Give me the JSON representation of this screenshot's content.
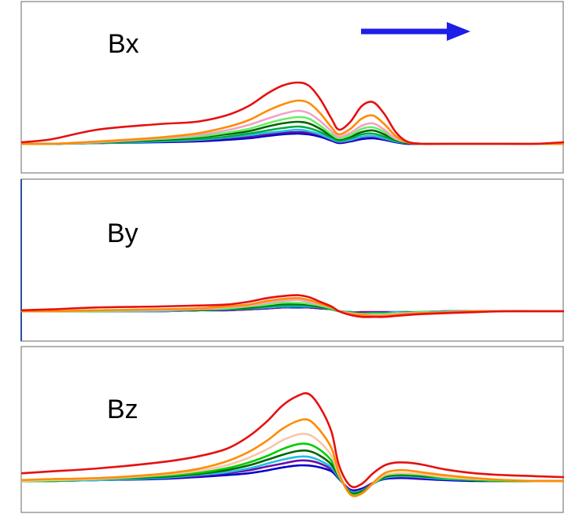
{
  "chart_data": [
    {
      "type": "line",
      "title": "Bx",
      "x": [
        0,
        40,
        100,
        180,
        230,
        270,
        300,
        325,
        345,
        365,
        380,
        395,
        410,
        420,
        435,
        450,
        465,
        480,
        495,
        510,
        530,
        560,
        600,
        640,
        680,
        717
      ],
      "ylim": [
        0,
        90
      ],
      "series": [
        {
          "color": "#0000cc",
          "values": [
            0,
            0,
            1,
            2,
            3,
            5,
            7,
            10,
            12,
            13,
            12,
            9,
            4,
            1,
            3,
            6,
            7,
            5,
            2,
            0,
            0,
            0,
            0,
            0,
            0,
            0
          ]
        },
        {
          "color": "#6a0dad",
          "values": [
            0,
            0,
            1,
            3,
            4,
            7,
            9,
            12,
            14,
            15,
            14,
            11,
            5,
            2,
            4,
            8,
            9,
            6,
            3,
            1,
            0,
            0,
            0,
            0,
            0,
            0
          ]
        },
        {
          "color": "#20c0e0",
          "values": [
            0,
            0,
            1,
            3,
            5,
            8,
            11,
            14,
            16,
            18,
            16,
            12,
            6,
            3,
            5,
            9,
            10,
            7,
            3,
            1,
            0,
            0,
            0,
            0,
            0,
            0
          ]
        },
        {
          "color": "#00aa44",
          "values": [
            0,
            0,
            1,
            4,
            6,
            9,
            13,
            17,
            20,
            22,
            20,
            15,
            8,
            4,
            7,
            12,
            13,
            9,
            4,
            1,
            0,
            0,
            0,
            0,
            0,
            0
          ]
        },
        {
          "color": "#006600",
          "values": [
            0,
            0,
            2,
            5,
            8,
            12,
            16,
            22,
            26,
            28,
            26,
            19,
            10,
            6,
            9,
            15,
            17,
            12,
            5,
            1,
            0,
            0,
            0,
            0,
            0,
            0
          ]
        },
        {
          "color": "#66ee66",
          "values": [
            0,
            0,
            2,
            6,
            9,
            14,
            19,
            26,
            31,
            34,
            32,
            23,
            12,
            7,
            11,
            19,
            21,
            15,
            6,
            2,
            0,
            0,
            0,
            0,
            0,
            0
          ]
        },
        {
          "color": "#f4a0c8",
          "values": [
            0,
            0,
            2,
            7,
            11,
            17,
            24,
            32,
            38,
            42,
            39,
            29,
            16,
            9,
            14,
            23,
            26,
            18,
            7,
            2,
            0,
            0,
            0,
            0,
            0,
            0
          ]
        },
        {
          "color": "#ff8c00",
          "values": [
            0,
            0,
            3,
            8,
            13,
            21,
            30,
            42,
            50,
            55,
            52,
            39,
            21,
            12,
            19,
            32,
            36,
            25,
            10,
            2,
            0,
            0,
            0,
            0,
            0,
            0
          ]
        },
        {
          "color": "#e61010",
          "values": [
            2,
            6,
            18,
            25,
            28,
            36,
            48,
            64,
            74,
            78,
            74,
            57,
            32,
            18,
            28,
            48,
            53,
            38,
            15,
            3,
            0,
            0,
            0,
            0,
            0,
            2
          ]
        }
      ]
    },
    {
      "type": "line",
      "title": "By",
      "x": [
        0,
        40,
        100,
        180,
        230,
        270,
        300,
        325,
        345,
        365,
        380,
        395,
        410,
        420,
        435,
        450,
        465,
        480,
        495,
        510,
        530,
        560,
        600,
        640,
        680,
        717
      ],
      "ylim": [
        -30,
        60
      ],
      "series": [
        {
          "color": "#0000cc",
          "values": [
            0,
            0,
            0,
            0,
            1,
            1,
            2,
            3,
            4,
            4,
            4,
            3,
            2,
            0,
            -1,
            -1,
            -1,
            -1,
            -1,
            -1,
            -1,
            0,
            0,
            0,
            0,
            0
          ]
        },
        {
          "color": "#6a0dad",
          "values": [
            0,
            0,
            0,
            0,
            1,
            1,
            2,
            3,
            4,
            5,
            4,
            3,
            2,
            0,
            -1,
            -1,
            -1,
            -1,
            -1,
            -1,
            -1,
            0,
            0,
            0,
            0,
            0
          ]
        },
        {
          "color": "#20c0e0",
          "values": [
            0,
            0,
            0,
            0,
            1,
            2,
            3,
            4,
            5,
            5,
            5,
            4,
            2,
            0,
            -1,
            -2,
            -2,
            -2,
            -1,
            -1,
            -1,
            0,
            0,
            0,
            0,
            0
          ]
        },
        {
          "color": "#00aa44",
          "values": [
            0,
            0,
            0,
            1,
            1,
            2,
            3,
            5,
            6,
            6,
            6,
            4,
            2,
            0,
            -1,
            -2,
            -2,
            -2,
            -2,
            -1,
            -1,
            -1,
            0,
            0,
            0,
            0
          ]
        },
        {
          "color": "#006600",
          "values": [
            0,
            0,
            0,
            1,
            1,
            3,
            4,
            6,
            8,
            8,
            7,
            5,
            3,
            0,
            -2,
            -2,
            -3,
            -3,
            -2,
            -2,
            -1,
            -1,
            0,
            0,
            0,
            0
          ]
        },
        {
          "color": "#66ee66",
          "values": [
            0,
            0,
            0,
            1,
            2,
            3,
            5,
            7,
            9,
            9,
            8,
            6,
            3,
            0,
            -2,
            -3,
            -3,
            -3,
            -2,
            -2,
            -1,
            -1,
            0,
            0,
            0,
            0
          ]
        },
        {
          "color": "#f4a0c8",
          "values": [
            0,
            0,
            1,
            1,
            2,
            4,
            6,
            9,
            11,
            12,
            10,
            7,
            4,
            0,
            -2,
            -3,
            -4,
            -4,
            -3,
            -2,
            -2,
            -1,
            0,
            0,
            0,
            0
          ]
        },
        {
          "color": "#ff8c00",
          "values": [
            0,
            0,
            1,
            2,
            3,
            5,
            7,
            11,
            13,
            14,
            12,
            8,
            4,
            0,
            -3,
            -4,
            -5,
            -5,
            -4,
            -3,
            -2,
            -1,
            0,
            0,
            0,
            0
          ]
        },
        {
          "color": "#e61010",
          "values": [
            1,
            2,
            4,
            5,
            6,
            7,
            10,
            14,
            16,
            17,
            15,
            10,
            5,
            0,
            -4,
            -6,
            -6,
            -6,
            -5,
            -4,
            -3,
            -2,
            -1,
            0,
            0,
            0
          ]
        }
      ]
    },
    {
      "type": "line",
      "title": "Bz",
      "x": [
        0,
        40,
        100,
        180,
        230,
        270,
        300,
        325,
        345,
        365,
        380,
        395,
        410,
        420,
        435,
        450,
        465,
        480,
        495,
        510,
        530,
        560,
        600,
        640,
        680,
        717
      ],
      "ylim": [
        -20,
        100
      ],
      "series": [
        {
          "color": "#0000cc",
          "values": [
            0,
            0,
            1,
            2,
            4,
            6,
            8,
            11,
            14,
            16,
            16,
            14,
            10,
            2,
            -9,
            -8,
            -2,
            2,
            3,
            3,
            2,
            1,
            0,
            0,
            0,
            0
          ]
        },
        {
          "color": "#6a0dad",
          "values": [
            0,
            0,
            1,
            3,
            5,
            8,
            11,
            15,
            18,
            21,
            21,
            18,
            12,
            3,
            -10,
            -9,
            -2,
            3,
            4,
            4,
            3,
            2,
            1,
            0,
            0,
            0
          ]
        },
        {
          "color": "#20c0e0",
          "values": [
            0,
            0,
            1,
            3,
            6,
            9,
            13,
            18,
            22,
            25,
            25,
            21,
            14,
            3,
            -11,
            -10,
            -3,
            3,
            5,
            5,
            4,
            2,
            1,
            0,
            0,
            0
          ]
        },
        {
          "color": "#006600",
          "values": [
            0,
            0,
            2,
            4,
            7,
            11,
            16,
            22,
            27,
            31,
            31,
            26,
            17,
            4,
            -12,
            -11,
            -3,
            4,
            6,
            6,
            5,
            3,
            1,
            0,
            0,
            0
          ]
        },
        {
          "color": "#00cc00",
          "values": [
            0,
            0,
            2,
            5,
            8,
            13,
            19,
            26,
            33,
            38,
            38,
            32,
            21,
            5,
            -13,
            -12,
            -3,
            5,
            7,
            7,
            6,
            3,
            1,
            0,
            0,
            0
          ]
        },
        {
          "color": "#f7c6a8",
          "values": [
            0,
            1,
            2,
            6,
            10,
            16,
            24,
            33,
            42,
            48,
            48,
            40,
            26,
            6,
            -14,
            -13,
            -3,
            6,
            8,
            8,
            7,
            4,
            2,
            1,
            0,
            0
          ]
        },
        {
          "color": "#ff8c00",
          "values": [
            1,
            2,
            3,
            7,
            12,
            20,
            30,
            42,
            54,
            62,
            63,
            52,
            34,
            8,
            -14,
            -13,
            -2,
            8,
            11,
            11,
            9,
            6,
            3,
            1,
            0,
            0
          ]
        },
        {
          "color": "#e61010",
          "values": [
            8,
            10,
            13,
            19,
            25,
            33,
            46,
            62,
            78,
            88,
            90,
            76,
            51,
            16,
            -5,
            -3,
            8,
            16,
            19,
            19,
            17,
            12,
            8,
            6,
            5,
            4
          ]
        }
      ]
    }
  ],
  "arrow": {
    "color": "#1e1ee6"
  }
}
